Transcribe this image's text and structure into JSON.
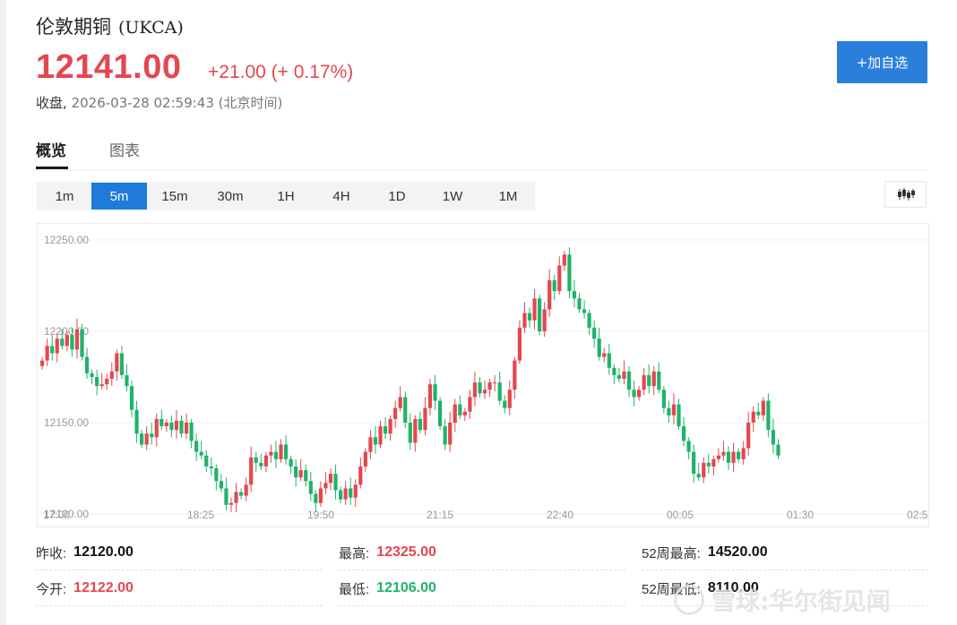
{
  "header": {
    "title": "伦敦期铜",
    "code": "(UKCA)",
    "price": "12141.00",
    "change": "+21.00 (+ 0.17%)",
    "status_label": "收盘,",
    "status_time": "2026-03-28 02:59:43 (北京时间)",
    "add_button": "+加自选"
  },
  "tabs": [
    {
      "label": "概览",
      "active": true
    },
    {
      "label": "图表",
      "active": false
    }
  ],
  "periods": [
    {
      "label": "1m",
      "active": false
    },
    {
      "label": "5m",
      "active": true
    },
    {
      "label": "15m",
      "active": false
    },
    {
      "label": "30m",
      "active": false
    },
    {
      "label": "1H",
      "active": false
    },
    {
      "label": "4H",
      "active": false
    },
    {
      "label": "1D",
      "active": false
    },
    {
      "label": "1W",
      "active": false
    },
    {
      "label": "1M",
      "active": false
    }
  ],
  "chart_type_icon": "candlestick-icon",
  "chart_data": {
    "type": "candlestick",
    "ylim": [
      12100,
      12250
    ],
    "y_ticks": [
      "12250.00",
      "12200.00",
      "12150.00",
      "12100.00"
    ],
    "x_ticks": [
      "17:00",
      "18:25",
      "19:50",
      "21:15",
      "22:40",
      "00:05",
      "01:30",
      "02:5"
    ],
    "colors": {
      "up": "#e4474f",
      "down": "#1fb36a"
    },
    "closes": [
      12184,
      12192,
      12188,
      12196,
      12192,
      12198,
      12190,
      12201,
      12186,
      12177,
      12175,
      12170,
      12171,
      12174,
      12178,
      12188,
      12176,
      12170,
      12157,
      12144,
      12138,
      12144,
      12142,
      12152,
      12148,
      12150,
      12146,
      12151,
      12144,
      12150,
      12140,
      12134,
      12132,
      12126,
      12125,
      12118,
      12114,
      12105,
      12106,
      12112,
      12110,
      12116,
      12131,
      12128,
      12126,
      12132,
      12134,
      12130,
      12138,
      12130,
      12126,
      12120,
      12124,
      12118,
      12111,
      12106,
      12114,
      12117,
      12122,
      12113,
      12108,
      12114,
      12109,
      12116,
      12126,
      12134,
      12142,
      12138,
      12148,
      12144,
      12152,
      12158,
      12164,
      12150,
      12139,
      12152,
      12146,
      12158,
      12171,
      12162,
      12148,
      12138,
      12150,
      12160,
      12154,
      12156,
      12164,
      12172,
      12166,
      12168,
      12172,
      12172,
      12162,
      12158,
      12168,
      12184,
      12202,
      12210,
      12206,
      12218,
      12200,
      12212,
      12228,
      12222,
      12236,
      12242,
      12222,
      12218,
      12212,
      12210,
      12202,
      12196,
      12186,
      12188,
      12180,
      12176,
      12174,
      12178,
      12168,
      12164,
      12168,
      12176,
      12170,
      12178,
      12168,
      12158,
      12154,
      12160,
      12148,
      12140,
      12134,
      12122,
      12120,
      12128,
      12126,
      12130,
      12132,
      12134,
      12128,
      12134,
      12130,
      12136,
      12150,
      12156,
      12154,
      12162,
      12146,
      12138,
      12132
    ]
  },
  "stats": {
    "prev_close": {
      "label": "昨收:",
      "value": "12120.00"
    },
    "high": {
      "label": "最高:",
      "value": "12325.00"
    },
    "high_52w": {
      "label": "52周最高:",
      "value": "14520.00"
    },
    "open": {
      "label": "今开:",
      "value": "12122.00"
    },
    "low": {
      "label": "最低:",
      "value": "12106.00"
    },
    "low_52w": {
      "label": "52周最低:",
      "value": "8110.00"
    }
  },
  "watermark": "雪球:华尔街见闻"
}
